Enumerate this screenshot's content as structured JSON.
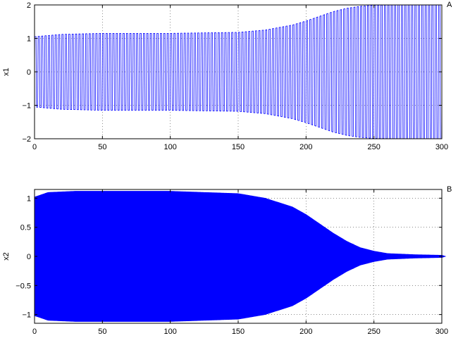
{
  "chart_data": [
    {
      "type": "line",
      "title": "",
      "panel_label": "A",
      "xlabel": "",
      "ylabel": "x1",
      "xlim": [
        0,
        300
      ],
      "ylim": [
        -2,
        2
      ],
      "xticks": [
        0,
        50,
        100,
        150,
        200,
        250,
        300
      ],
      "yticks": [
        -2,
        -1,
        0,
        1,
        2
      ],
      "grid": true,
      "series_color": "#0000ff",
      "envelope": {
        "x": [
          0,
          20,
          50,
          100,
          150,
          170,
          190,
          200,
          210,
          220,
          230,
          240,
          250,
          270,
          300
        ],
        "upper": [
          1.05,
          1.12,
          1.15,
          1.15,
          1.18,
          1.25,
          1.4,
          1.52,
          1.66,
          1.8,
          1.9,
          1.96,
          1.99,
          2.0,
          2.0
        ],
        "lower": [
          -1.05,
          -1.12,
          -1.15,
          -1.15,
          -1.18,
          -1.25,
          -1.4,
          -1.52,
          -1.66,
          -1.8,
          -1.9,
          -1.96,
          -1.99,
          -2.0,
          -2.0
        ]
      },
      "oscillation_period": 2.5
    },
    {
      "type": "line",
      "title": "",
      "panel_label": "B",
      "xlabel": "",
      "ylabel": "x2",
      "xlim": [
        0,
        300
      ],
      "ylim": [
        -1.15,
        1.15
      ],
      "xticks": [
        0,
        50,
        100,
        150,
        200,
        250,
        300
      ],
      "yticks": [
        -1,
        -0.5,
        0,
        0.5,
        1
      ],
      "grid": true,
      "series_color": "#0000ff",
      "envelope": {
        "x": [
          0,
          10,
          30,
          100,
          150,
          170,
          190,
          200,
          210,
          220,
          230,
          240,
          250,
          260,
          280,
          300
        ],
        "upper": [
          1.02,
          1.1,
          1.12,
          1.12,
          1.08,
          1.0,
          0.85,
          0.72,
          0.56,
          0.4,
          0.26,
          0.15,
          0.09,
          0.05,
          0.03,
          0.02
        ],
        "lower": [
          -1.02,
          -1.1,
          -1.12,
          -1.12,
          -1.08,
          -1.0,
          -0.85,
          -0.72,
          -0.56,
          -0.4,
          -0.26,
          -0.15,
          -0.09,
          -0.05,
          -0.03,
          -0.02
        ]
      },
      "oscillation_period": 0.5,
      "marker_spacing": 5
    }
  ]
}
